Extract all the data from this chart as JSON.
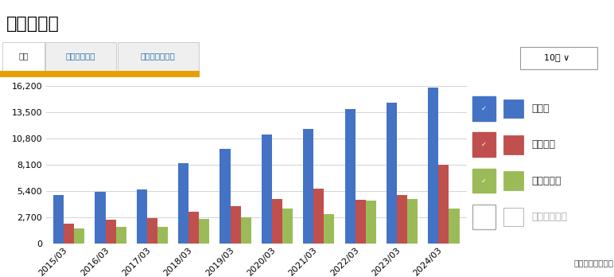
{
  "title": "有利子負債",
  "subtitle_tabs": [
    "実績",
    "対総資産比率",
    "対自己資本比率"
  ],
  "period_label": "10期",
  "unit_label": "（単位：百万円）",
  "categories": [
    "2015/03",
    "2016/03",
    "2017/03",
    "2018/03",
    "2019/03",
    "2020/03",
    "2021/03",
    "2022/03",
    "2023/03",
    "2024/03"
  ],
  "series": [
    {
      "name": "総資産",
      "color": "#4472c4",
      "values": [
        5000,
        5300,
        5600,
        8300,
        9700,
        11200,
        11800,
        13800,
        14500,
        16000
      ]
    },
    {
      "name": "自己資本",
      "color": "#c0504d",
      "values": [
        2100,
        2450,
        2650,
        3250,
        3850,
        4600,
        5650,
        4550,
        5000,
        8100
      ]
    },
    {
      "name": "有利子負債",
      "color": "#9bbb59",
      "values": [
        1550,
        1750,
        1750,
        2550,
        2700,
        3650,
        3050,
        4450,
        4600,
        3650
      ]
    }
  ],
  "legend_items": [
    {
      "label": "総資産",
      "color": "#4472c4",
      "checked": true
    },
    {
      "label": "自己資本",
      "color": "#c0504d",
      "checked": true
    },
    {
      "label": "有利子負債",
      "color": "#9bbb59",
      "checked": true
    },
    {
      "label": "純有利子負債",
      "color": "#aaaaaa",
      "checked": false
    }
  ],
  "ylim": [
    0,
    16200
  ],
  "yticks": [
    0,
    2700,
    5400,
    8100,
    10800,
    13500,
    16200
  ],
  "grid_color": "#cccccc",
  "background_color": "#ffffff",
  "bar_width": 0.25,
  "title_fontsize": 16,
  "tick_fontsize": 8,
  "legend_fontsize": 9
}
